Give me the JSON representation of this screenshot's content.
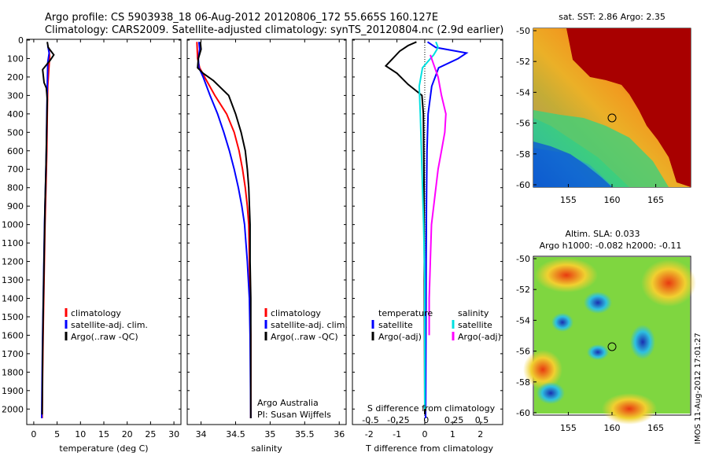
{
  "header": {
    "title_line1": "Argo profile: CS 5903938_18 06-Aug-2012 20120806_172 55.665S 160.127E",
    "title_line2": "Climatology: CARS2009. Satellite-adjusted climatology: synTS_20120804.nc (2.9d earlier)"
  },
  "colors": {
    "climatology": "#ff0000",
    "satellite": "#0000ff",
    "argo": "#000000",
    "sal_satellite": "#00e0e0",
    "sal_argo": "#ff00ff"
  },
  "chart_data": [
    {
      "id": "temperature",
      "type": "line",
      "xlabel": "temperature (deg C)",
      "xticks": [
        0,
        5,
        10,
        15,
        20,
        25,
        30
      ],
      "xlim": [
        -1.5,
        31.5
      ],
      "ylim": [
        2050,
        0
      ],
      "yticks": [
        0,
        100,
        200,
        300,
        400,
        500,
        600,
        700,
        800,
        900,
        1000,
        1100,
        1200,
        1300,
        1400,
        1500,
        1600,
        1700,
        1800,
        1900,
        2000
      ],
      "legend": [
        "climatology",
        "satellite-adj. clim.",
        "Argo(..raw -QC)"
      ],
      "series": [
        {
          "name": "climatology",
          "color": "#ff0000",
          "points": [
            [
              3.2,
              40
            ],
            [
              3.4,
              90
            ],
            [
              3.3,
              130
            ],
            [
              3.0,
              250
            ],
            [
              2.9,
              400
            ],
            [
              2.8,
              600
            ],
            [
              2.6,
              800
            ],
            [
              2.4,
              1000
            ],
            [
              2.2,
              1300
            ],
            [
              2.0,
              1600
            ],
            [
              1.9,
              1800
            ],
            [
              1.8,
              2050
            ]
          ]
        },
        {
          "name": "satellite-adj. clim.",
          "color": "#0000ff",
          "points": [
            [
              3.0,
              30
            ],
            [
              3.3,
              70
            ],
            [
              3.0,
              120
            ],
            [
              2.9,
              250
            ],
            [
              2.8,
              400
            ],
            [
              2.7,
              600
            ],
            [
              2.5,
              800
            ],
            [
              2.3,
              1000
            ],
            [
              2.1,
              1300
            ],
            [
              1.9,
              1600
            ],
            [
              1.8,
              1800
            ],
            [
              1.7,
              2050
            ]
          ]
        },
        {
          "name": "Argo(..raw -QC)",
          "color": "#000000",
          "points": [
            [
              2.9,
              10
            ],
            [
              3.1,
              40
            ],
            [
              4.3,
              80
            ],
            [
              3.5,
              110
            ],
            [
              1.9,
              160
            ],
            [
              2.2,
              230
            ],
            [
              2.7,
              260
            ],
            [
              2.9,
              320
            ],
            [
              2.8,
              450
            ],
            [
              2.6,
              700
            ],
            [
              2.4,
              900
            ],
            [
              2.2,
              1200
            ],
            [
              2.0,
              1500
            ],
            [
              1.9,
              1700
            ],
            [
              1.8,
              2030
            ]
          ]
        }
      ]
    },
    {
      "id": "salinity",
      "type": "line",
      "xlabel": "salinity",
      "xticks": [
        34,
        34.5,
        35,
        35.5,
        36
      ],
      "xtick_labels": [
        "34",
        "34.5",
        "35",
        "35.5",
        "36"
      ],
      "xlim": [
        33.8,
        36.1
      ],
      "ylim": [
        2050,
        0
      ],
      "legend": [
        "climatology",
        "satellite-adj. clim.",
        "Argo(..raw -QC)"
      ],
      "annotations": [
        "Argo Australia",
        "PI: Susan Wijffels"
      ],
      "series": [
        {
          "name": "climatology",
          "color": "#ff0000",
          "points": [
            [
              33.94,
              10
            ],
            [
              33.95,
              100
            ],
            [
              33.98,
              150
            ],
            [
              34.05,
              200
            ],
            [
              34.2,
              300
            ],
            [
              34.37,
              400
            ],
            [
              34.48,
              500
            ],
            [
              34.55,
              600
            ],
            [
              34.6,
              700
            ],
            [
              34.64,
              800
            ],
            [
              34.67,
              900
            ],
            [
              34.69,
              1000
            ],
            [
              34.7,
              1200
            ],
            [
              34.71,
              1400
            ],
            [
              34.72,
              1600
            ],
            [
              34.72,
              2050
            ]
          ]
        },
        {
          "name": "satellite-adj. clim.",
          "color": "#0000ff",
          "points": [
            [
              33.97,
              10
            ],
            [
              33.98,
              50
            ],
            [
              33.96,
              100
            ],
            [
              33.97,
              150
            ],
            [
              34.03,
              200
            ],
            [
              34.13,
              300
            ],
            [
              34.24,
              400
            ],
            [
              34.33,
              500
            ],
            [
              34.41,
              600
            ],
            [
              34.48,
              700
            ],
            [
              34.54,
              800
            ],
            [
              34.59,
              900
            ],
            [
              34.63,
              1000
            ],
            [
              34.67,
              1200
            ],
            [
              34.7,
              1400
            ],
            [
              34.71,
              1600
            ],
            [
              34.72,
              2050
            ]
          ]
        },
        {
          "name": "Argo(..raw -QC)",
          "color": "#000000",
          "points": [
            [
              33.99,
              10
            ],
            [
              34.0,
              50
            ],
            [
              33.96,
              100
            ],
            [
              33.95,
              150
            ],
            [
              34.03,
              180
            ],
            [
              34.18,
              220
            ],
            [
              34.4,
              300
            ],
            [
              34.5,
              400
            ],
            [
              34.58,
              500
            ],
            [
              34.64,
              600
            ],
            [
              34.67,
              700
            ],
            [
              34.69,
              800
            ],
            [
              34.71,
              1000
            ],
            [
              34.71,
              1200
            ],
            [
              34.72,
              1400
            ],
            [
              34.72,
              1600
            ],
            [
              34.72,
              2050
            ]
          ]
        }
      ]
    },
    {
      "id": "difference",
      "type": "line",
      "xlabel": "T difference from climatology",
      "xticks": [
        -2,
        -1,
        0,
        1,
        2
      ],
      "top_label": "S difference from climatology",
      "top_ticks": [
        "-0.5",
        "-0.25",
        "0",
        "0.25",
        "0.5"
      ],
      "xlim": [
        -2.6,
        2.8
      ],
      "ylim": [
        2050,
        0
      ],
      "legend": {
        "temperature_head": "temperature",
        "salinity_head": "salinity",
        "temperature": [
          "satellite",
          "Argo(-adj)"
        ],
        "salinity": [
          "satellite",
          "Argo(-adj)"
        ]
      },
      "series": [
        {
          "name": "T satellite",
          "color": "#0000ff",
          "points": [
            [
              0.1,
              10
            ],
            [
              0.4,
              40
            ],
            [
              1.5,
              70
            ],
            [
              1.2,
              100
            ],
            [
              0.5,
              150
            ],
            [
              0.25,
              250
            ],
            [
              0.12,
              400
            ],
            [
              0.08,
              600
            ],
            [
              0.06,
              900
            ],
            [
              0.05,
              1200
            ],
            [
              0.04,
              1600
            ],
            [
              0.03,
              2050
            ]
          ]
        },
        {
          "name": "T Argo(-adj)",
          "color": "#000000",
          "points": [
            [
              -0.3,
              10
            ],
            [
              -0.6,
              30
            ],
            [
              -0.9,
              60
            ],
            [
              -1.4,
              140
            ],
            [
              -1.0,
              180
            ],
            [
              -0.6,
              240
            ],
            [
              -0.1,
              300
            ],
            [
              -0.05,
              400
            ],
            [
              -0.03,
              700
            ],
            [
              -0.02,
              1000
            ],
            [
              -0.01,
              1500
            ],
            [
              0.0,
              2030
            ]
          ]
        },
        {
          "name": "S satellite",
          "color": "#00e0e0",
          "points": [
            [
              0.1,
              10
            ],
            [
              0.12,
              40
            ],
            [
              0.08,
              80
            ],
            [
              -0.02,
              150
            ],
            [
              -0.05,
              250
            ],
            [
              -0.04,
              400
            ],
            [
              -0.03,
              600
            ],
            [
              -0.02,
              800
            ],
            [
              -0.01,
              1000
            ],
            [
              0.0,
              1300
            ],
            [
              0.0,
              1600
            ],
            [
              0.0,
              2000
            ]
          ]
        },
        {
          "name": "S Argo(-adj)",
          "color": "#ff00ff",
          "points": [
            [
              0.05,
              80
            ],
            [
              0.12,
              200
            ],
            [
              0.15,
              300
            ],
            [
              0.19,
              400
            ],
            [
              0.18,
              500
            ],
            [
              0.15,
              600
            ],
            [
              0.12,
              700
            ],
            [
              0.08,
              900
            ],
            [
              0.06,
              1000
            ],
            [
              0.05,
              1200
            ],
            [
              0.04,
              1400
            ],
            [
              0.04,
              1600
            ]
          ]
        }
      ]
    }
  ],
  "maps": {
    "sst": {
      "title": "sat. SST: 2.86 Argo: 2.35",
      "xticks": [
        155,
        160,
        165
      ],
      "yticks": [
        -50,
        -52,
        -54,
        -56,
        -58,
        -60
      ],
      "marker_lon": 160.127,
      "marker_lat": -55.665
    },
    "sla": {
      "title_line1": "Altim. SLA: 0.033",
      "title_line2": "Argo h1000: -0.082 h2000: -0.11",
      "xticks": [
        155,
        160,
        165
      ],
      "yticks": [
        -50,
        -52,
        -54,
        -56,
        -58,
        -60
      ],
      "marker_lon": 160.127,
      "marker_lat": -55.665
    }
  },
  "footer": {
    "stamp": "IMOS 11-Aug-2012 17:01:27"
  }
}
